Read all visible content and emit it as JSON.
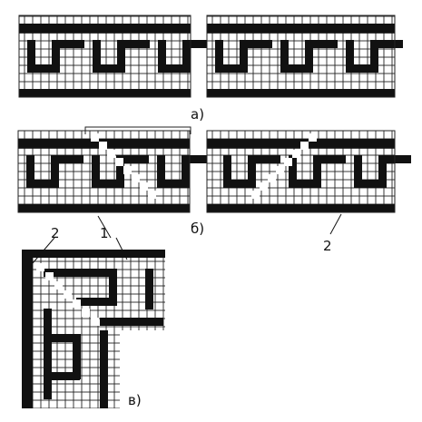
{
  "labels": {
    "panel_a": "а)",
    "panel_b": "б)",
    "panel_v": "в)",
    "callout_1": "1",
    "callout_2_left": "2",
    "callout_2_right": "2"
  },
  "colors": {
    "ink": "#111111",
    "paper": "#ffffff",
    "grid": "#222222"
  }
}
